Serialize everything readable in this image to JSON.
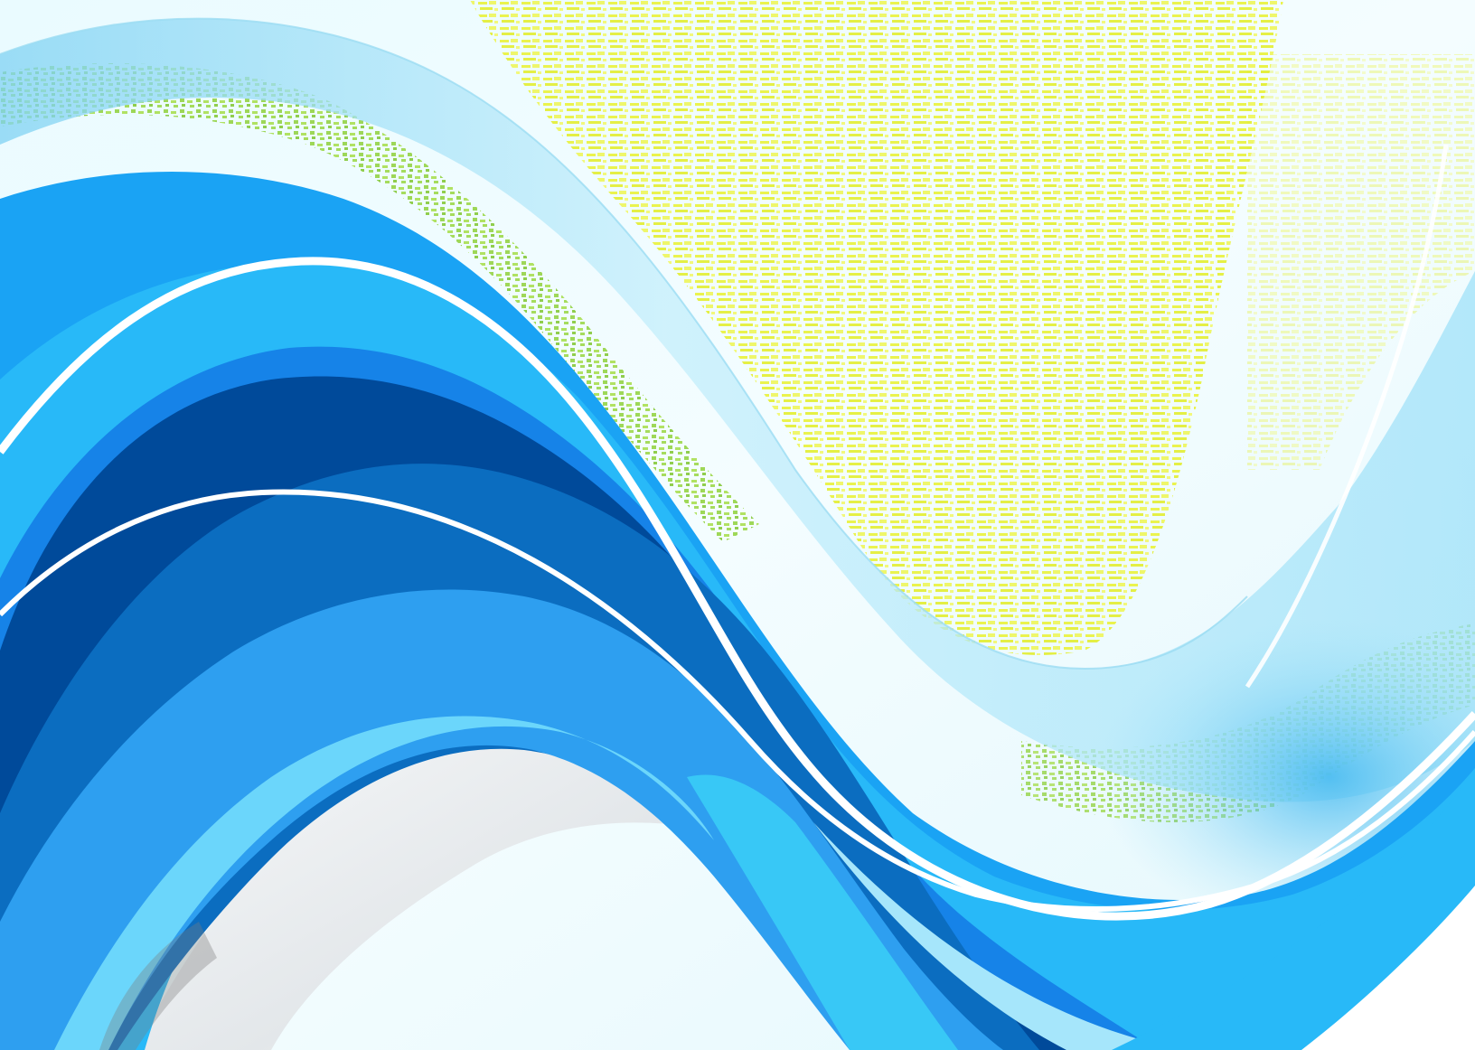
{
  "image": {
    "subject": "abstract-blue-wave-background",
    "palette": {
      "background": "#ffffff",
      "sky_tint": "#e3f7fc",
      "yellow_noise": "#e8f13a",
      "green_noise": "#8fd13a",
      "wave_deep_navy": "#004a9a",
      "wave_royal": "#0b6dc0",
      "wave_blue": "#1683e8",
      "wave_sky": "#1aa3f4",
      "wave_cyan": "#28b9f8",
      "wave_light": "#6bd6fb",
      "wave_pale": "#a6e6fb",
      "wave_highlight": "#ffffff",
      "silver": "#e7eaec"
    }
  }
}
